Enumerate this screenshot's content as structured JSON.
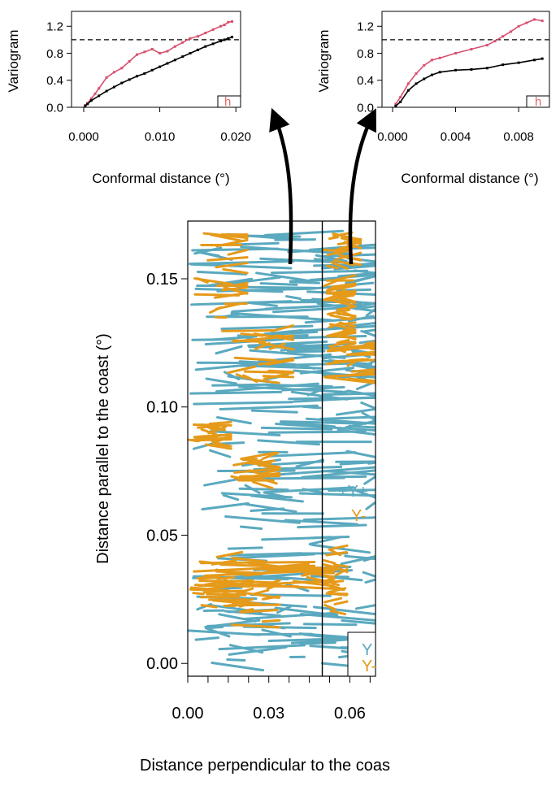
{
  "colors": {
    "y_plus": "#5aa9bf",
    "y_minus": "#e59a1a",
    "variogram_red": "#d9506f",
    "variogram_black": "#000000",
    "legend_red": "#e06a6a"
  },
  "chart_data": [
    {
      "id": "variogram-left",
      "type": "line",
      "ylabel": "Variogram",
      "xlabel": "Conformal distance (°)",
      "xlim": [
        0,
        0.0203
      ],
      "ylim": [
        0,
        1.42
      ],
      "x_ticks": [
        "0.000",
        "0.010",
        "0.020"
      ],
      "x_tick_values": [
        0,
        0.01,
        0.02
      ],
      "y_ticks": [
        "0.0",
        "0.4",
        "0.8",
        "1.2"
      ],
      "y_tick_values": [
        0,
        0.4,
        0.8,
        1.2
      ],
      "reference_line": 1.0,
      "legend_text": "h",
      "series": [
        {
          "color": "#d9506f",
          "x": [
            0.0002,
            0.0005,
            0.001,
            0.0015,
            0.002,
            0.003,
            0.004,
            0.005,
            0.006,
            0.007,
            0.008,
            0.009,
            0.01,
            0.011,
            0.012,
            0.013,
            0.014,
            0.015,
            0.016,
            0.017,
            0.018,
            0.0185,
            0.019,
            0.0195
          ],
          "y": [
            0.03,
            0.06,
            0.13,
            0.2,
            0.28,
            0.44,
            0.52,
            0.58,
            0.68,
            0.78,
            0.82,
            0.86,
            0.8,
            0.83,
            0.9,
            0.96,
            1.02,
            1.05,
            1.1,
            1.15,
            1.2,
            1.22,
            1.26,
            1.27
          ]
        },
        {
          "color": "#000000",
          "x": [
            0.0002,
            0.0005,
            0.001,
            0.002,
            0.003,
            0.004,
            0.005,
            0.006,
            0.007,
            0.008,
            0.009,
            0.01,
            0.011,
            0.012,
            0.013,
            0.014,
            0.015,
            0.016,
            0.017,
            0.018,
            0.0185,
            0.019,
            0.0195
          ],
          "y": [
            0.02,
            0.05,
            0.1,
            0.17,
            0.24,
            0.3,
            0.36,
            0.41,
            0.46,
            0.5,
            0.55,
            0.6,
            0.65,
            0.7,
            0.75,
            0.8,
            0.85,
            0.9,
            0.94,
            0.98,
            1.0,
            1.02,
            1.04
          ]
        }
      ]
    },
    {
      "id": "variogram-right",
      "type": "line",
      "ylabel": "Variogram",
      "xlabel": "Conformal distance (°)",
      "xlim": [
        0,
        0.0098
      ],
      "ylim": [
        0,
        1.42
      ],
      "x_ticks": [
        "0.000",
        "0.004",
        "0.008"
      ],
      "x_tick_values": [
        0,
        0.004,
        0.008
      ],
      "y_ticks": [
        "0.0",
        "0.4",
        "0.8",
        "1.2"
      ],
      "y_tick_values": [
        0,
        0.4,
        0.8,
        1.2
      ],
      "reference_line": 1.0,
      "legend_text": "h",
      "series": [
        {
          "color": "#d9506f",
          "x": [
            0.0002,
            0.0005,
            0.001,
            0.0015,
            0.002,
            0.0025,
            0.003,
            0.004,
            0.005,
            0.006,
            0.0065,
            0.007,
            0.0075,
            0.008,
            0.0085,
            0.009,
            0.0095
          ],
          "y": [
            0.05,
            0.15,
            0.35,
            0.5,
            0.62,
            0.7,
            0.73,
            0.8,
            0.86,
            0.92,
            0.98,
            1.05,
            1.12,
            1.2,
            1.25,
            1.3,
            1.28
          ]
        },
        {
          "color": "#000000",
          "x": [
            0.0002,
            0.0005,
            0.001,
            0.0015,
            0.002,
            0.0025,
            0.003,
            0.004,
            0.005,
            0.006,
            0.007,
            0.008,
            0.009,
            0.0095
          ],
          "y": [
            0.02,
            0.08,
            0.25,
            0.35,
            0.42,
            0.48,
            0.52,
            0.55,
            0.56,
            0.58,
            0.63,
            0.66,
            0.7,
            0.72
          ]
        }
      ]
    },
    {
      "id": "track-map",
      "type": "scatter",
      "xlabel": "Distance perpendicular to the coas",
      "ylabel": "Distance parallel to the coast (°)",
      "xlim": [
        0,
        0.0695
      ],
      "ylim": [
        -0.005,
        0.1725
      ],
      "x_ticks": [
        "0.00",
        "0.03",
        "0.06"
      ],
      "x_tick_values": [
        0,
        0.03,
        0.06
      ],
      "y_ticks": [
        "0.00",
        "0.05",
        "0.10",
        "0.15"
      ],
      "y_tick_values": [
        0,
        0.05,
        0.1,
        0.15
      ],
      "divider_x": 0.0498,
      "annotations": [
        "+Y+",
        "Y-"
      ],
      "legend_items": [
        "Y",
        "Y-"
      ],
      "series": [
        {
          "name": "Y+",
          "color": "#5aa9bf"
        },
        {
          "name": "Y-",
          "color": "#e59a1a"
        }
      ]
    }
  ]
}
